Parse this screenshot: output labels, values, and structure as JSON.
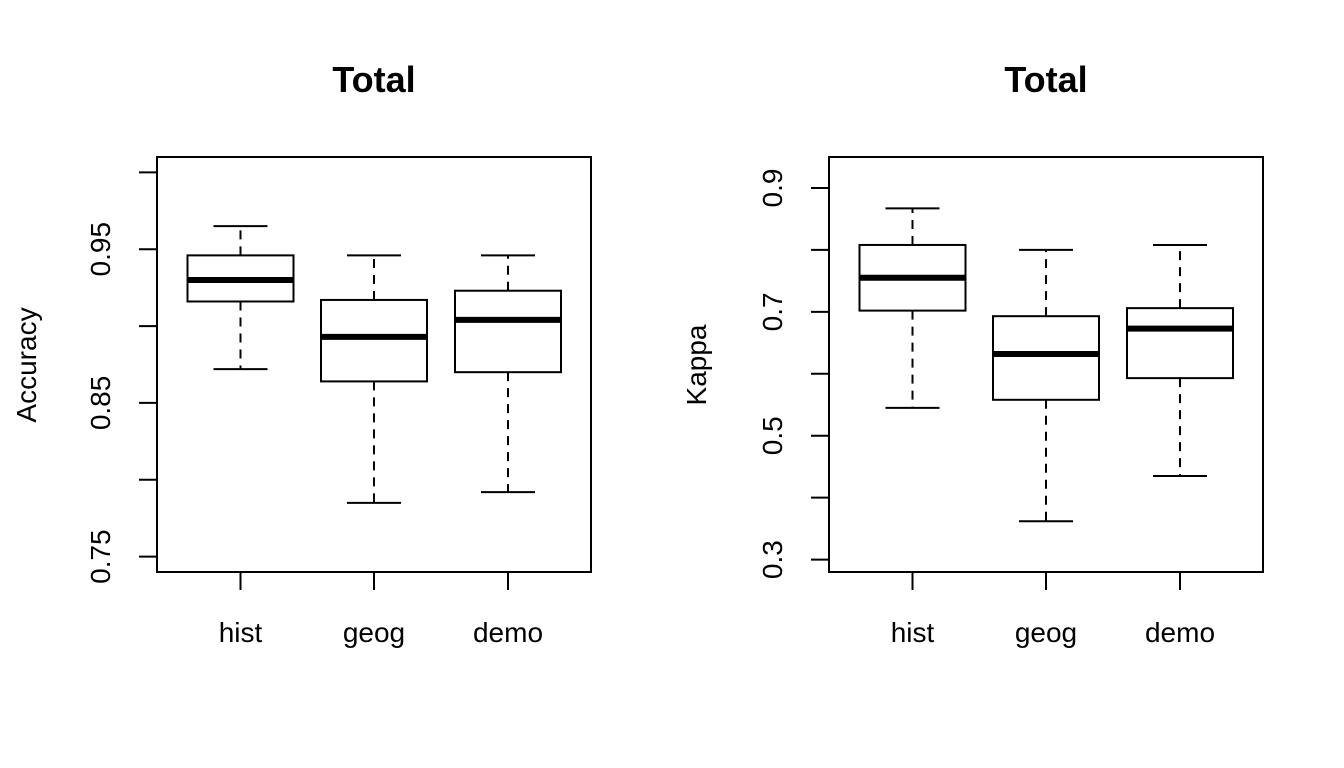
{
  "chart_data": [
    {
      "type": "box",
      "title": "Total",
      "xlabel": "",
      "ylabel": "Accuracy",
      "categories": [
        "hist",
        "geog",
        "demo"
      ],
      "ylim": [
        0.74,
        1.01
      ],
      "yticks": [
        0.75,
        0.8,
        0.85,
        0.9,
        0.95,
        1.0
      ],
      "ytick_labels": [
        "0.75",
        "",
        "0.85",
        "",
        "0.95",
        ""
      ],
      "grid": false,
      "boxes": [
        {
          "category": "hist",
          "whisker_low": 0.872,
          "q1": 0.916,
          "median": 0.93,
          "q3": 0.946,
          "whisker_high": 0.965
        },
        {
          "category": "geog",
          "whisker_low": 0.785,
          "q1": 0.864,
          "median": 0.893,
          "q3": 0.917,
          "whisker_high": 0.946
        },
        {
          "category": "demo",
          "whisker_low": 0.792,
          "q1": 0.87,
          "median": 0.904,
          "q3": 0.923,
          "whisker_high": 0.946
        }
      ]
    },
    {
      "type": "box",
      "title": "Total",
      "xlabel": "",
      "ylabel": "Kappa",
      "categories": [
        "hist",
        "geog",
        "demo"
      ],
      "ylim": [
        0.28,
        0.95
      ],
      "yticks": [
        0.3,
        0.4,
        0.5,
        0.6,
        0.7,
        0.8,
        0.9
      ],
      "ytick_labels": [
        "0.3",
        "",
        "0.5",
        "",
        "0.7",
        "",
        "0.9"
      ],
      "grid": false,
      "boxes": [
        {
          "category": "hist",
          "whisker_low": 0.545,
          "q1": 0.702,
          "median": 0.755,
          "q3": 0.808,
          "whisker_high": 0.867
        },
        {
          "category": "geog",
          "whisker_low": 0.362,
          "q1": 0.558,
          "median": 0.632,
          "q3": 0.693,
          "whisker_high": 0.8
        },
        {
          "category": "demo",
          "whisker_low": 0.435,
          "q1": 0.593,
          "median": 0.673,
          "q3": 0.706,
          "whisker_high": 0.808
        }
      ]
    }
  ]
}
